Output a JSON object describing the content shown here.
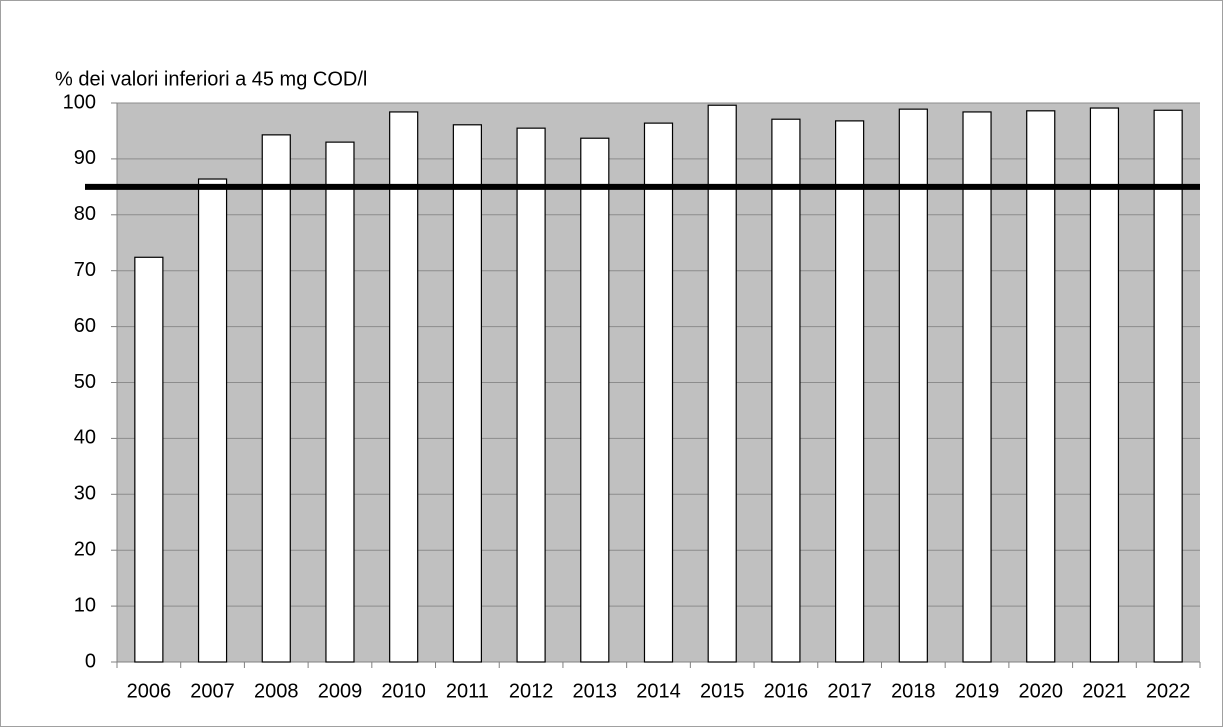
{
  "chart_data": {
    "type": "bar",
    "title": "%  dei valori inferiori a 45 mg COD/l",
    "categories": [
      "2006",
      "2007",
      "2008",
      "2009",
      "2010",
      "2011",
      "2012",
      "2013",
      "2014",
      "2015",
      "2016",
      "2017",
      "2018",
      "2019",
      "2020",
      "2021",
      "2022"
    ],
    "values": [
      72.4,
      86.4,
      94.3,
      93.0,
      98.4,
      96.1,
      95.5,
      93.7,
      96.4,
      99.6,
      97.1,
      96.8,
      98.9,
      98.4,
      98.6,
      99.1,
      98.7
    ],
    "color": "#ffffff",
    "reference_line": {
      "value": 85,
      "color": "#000000"
    },
    "ylim": [
      0,
      100
    ],
    "yticks": [
      0,
      10,
      20,
      30,
      40,
      50,
      60,
      70,
      80,
      90,
      100
    ],
    "grid": true
  }
}
